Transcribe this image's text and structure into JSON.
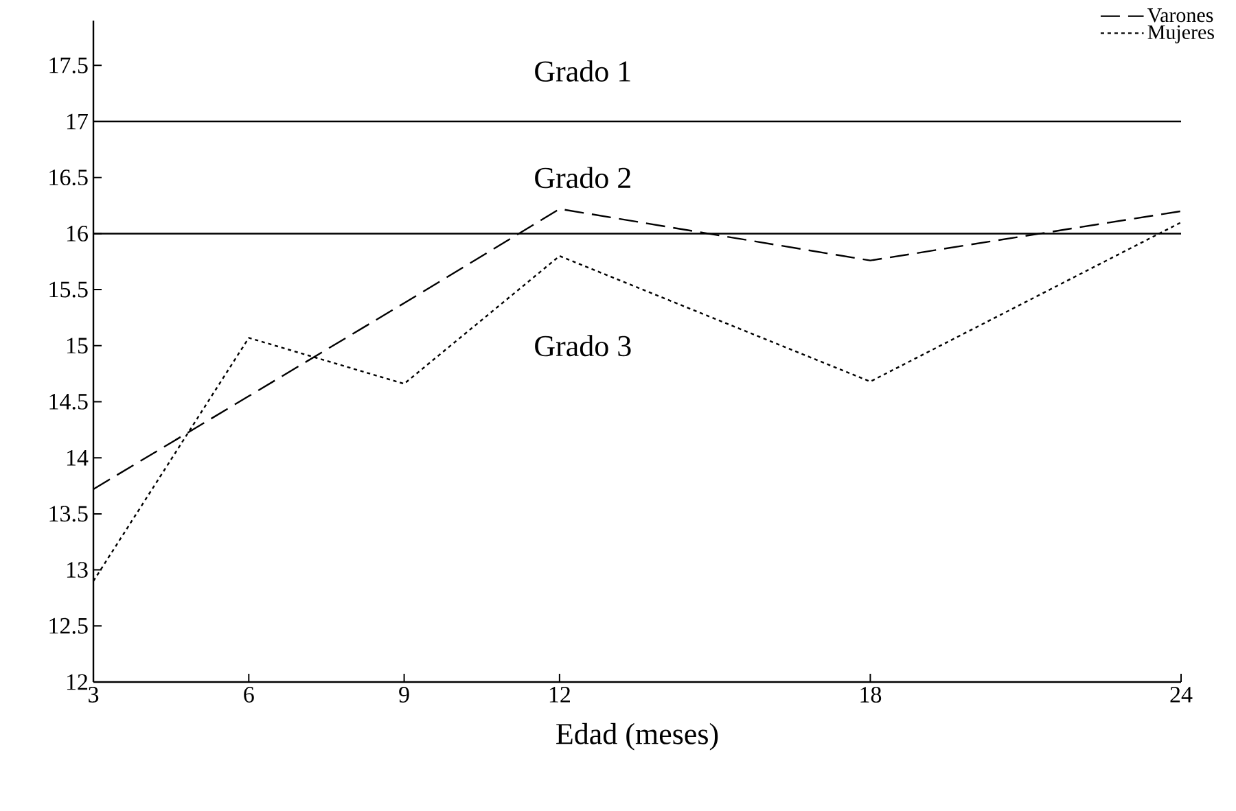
{
  "chart_data": {
    "type": "line",
    "xlabel": "Edad (meses)",
    "x": [
      3,
      6,
      9,
      12,
      18,
      24
    ],
    "series": [
      {
        "name": "Varones",
        "color": "#000000",
        "line_style": "dashed",
        "values": [
          13.72,
          14.55,
          15.38,
          16.22,
          15.76,
          16.2
        ]
      },
      {
        "name": "Mujeres",
        "color": "#000000",
        "line_style": "dotted",
        "values": [
          12.9,
          15.07,
          14.66,
          15.8,
          14.68,
          16.1
        ]
      }
    ],
    "xlim": [
      3,
      24
    ],
    "xticks": [
      3,
      6,
      9,
      12,
      18,
      24
    ],
    "ylim": [
      12,
      17.9
    ],
    "yticks": [
      12,
      12.5,
      13,
      13.5,
      14,
      14.5,
      15,
      15.5,
      16,
      16.5,
      17,
      17.5
    ],
    "ref_lines": [
      {
        "axis": "y",
        "value": 17,
        "color": "#000000"
      },
      {
        "axis": "y",
        "value": 16,
        "color": "#000000"
      }
    ],
    "annotations": [
      "Grado 1",
      "Grado 2",
      "Grado 3"
    ],
    "legend": "top right",
    "grid": false
  }
}
